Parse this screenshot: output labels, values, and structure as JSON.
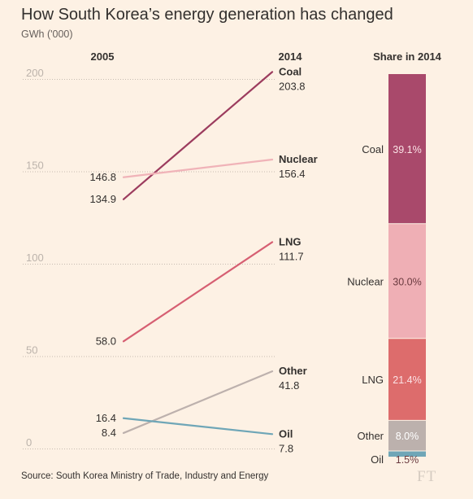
{
  "title": "How South Korea’s energy generation has changed",
  "subtitle": "GWh ('000)",
  "source": "Source: South Korea Ministry of Trade, Industry and Energy",
  "logo": "FT",
  "chart_data": [
    {
      "type": "line",
      "chart_kind": "slope",
      "x_labels": [
        "2005",
        "2014"
      ],
      "ylim": [
        0,
        200
      ],
      "y_ticks": [
        "0",
        "50",
        "100",
        "150",
        "200"
      ],
      "grid": "horizontal dotted",
      "series": [
        {
          "name": "Coal",
          "color": "#9c3c5e",
          "values": [
            134.9,
            203.8
          ],
          "labels": [
            "134.9",
            "203.8"
          ]
        },
        {
          "name": "Nuclear",
          "color": "#f0b3b8",
          "values": [
            146.8,
            156.4
          ],
          "labels": [
            "146.8",
            "156.4"
          ]
        },
        {
          "name": "LNG",
          "color": "#d65f72",
          "values": [
            58.0,
            111.7
          ],
          "labels": [
            "58.0",
            "111.7"
          ]
        },
        {
          "name": "Other",
          "color": "#bdb1ad",
          "values": [
            8.4,
            41.8
          ],
          "labels": [
            "8.4",
            "41.8"
          ]
        },
        {
          "name": "Oil",
          "color": "#6fa6b7",
          "values": [
            16.4,
            7.8
          ],
          "labels": [
            "16.4",
            "7.8"
          ]
        }
      ]
    },
    {
      "type": "bar",
      "stacked": true,
      "title": "Share in 2014",
      "categories": [
        "Coal",
        "Nuclear",
        "LNG",
        "Other",
        "Oil"
      ],
      "values": [
        39.1,
        30.0,
        21.4,
        8.0,
        1.5
      ],
      "value_labels": [
        "39.1%",
        "30.0%",
        "21.4%",
        "8.0%",
        "1.5%"
      ],
      "colors": [
        "#a9496b",
        "#efafb5",
        "#dd6c6c",
        "#bcb1ad",
        "#6fa6b7"
      ],
      "label_colors": [
        "#fbe3e6",
        "#6b3b40",
        "#fbe3e6",
        "#ffffff",
        "#6b3b40"
      ]
    }
  ]
}
